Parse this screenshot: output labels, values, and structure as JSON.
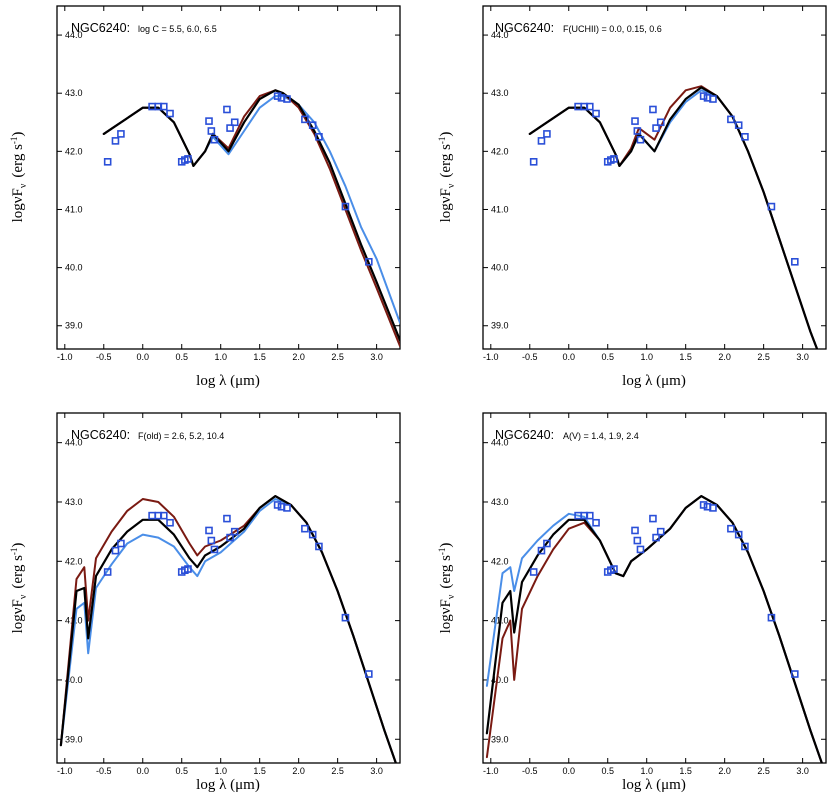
{
  "colors": {
    "black": "#000000",
    "red": "#7a1a12",
    "light_blue": "#4a8ee8",
    "observed": "#2a4fd8"
  },
  "chart_data": [
    {
      "type": "line",
      "object": "NGC6240:",
      "params": "log C = 5.5, 6.0, 6.5",
      "xlabel": "log λ  (μm)",
      "ylabel": "logνF",
      "ylabel_sub": "ν",
      "ylabel_units": "(erg s",
      "ylabel_units_sup": "-1",
      "ylabel_units_close": ")",
      "xlim": [
        -1.1,
        3.3
      ],
      "ylim": [
        38.6,
        44.5
      ],
      "xticks": [
        "-1.0",
        "-0.5",
        "0.0",
        "0.5",
        "1.0",
        "1.5",
        "2.0",
        "2.5",
        "3.0"
      ],
      "yticks": [
        "39.0",
        "40.0",
        "41.0",
        "42.0",
        "43.0",
        "44.0"
      ],
      "series": [
        {
          "name": "log C = 5.5",
          "color": "light_blue",
          "x": [
            -0.5,
            0.0,
            0.2,
            0.4,
            0.6,
            0.65,
            0.8,
            0.9,
            1.1,
            1.3,
            1.5,
            1.7,
            1.8,
            2.0,
            2.2,
            2.4,
            2.6,
            2.8,
            3.0,
            3.3
          ],
          "y": [
            42.3,
            42.75,
            42.75,
            42.5,
            41.95,
            41.75,
            42.0,
            42.25,
            41.95,
            42.35,
            42.75,
            42.95,
            42.95,
            42.8,
            42.5,
            42.0,
            41.4,
            40.7,
            40.15,
            39.05
          ]
        },
        {
          "name": "log C = 6.0",
          "color": "black",
          "x": [
            -0.5,
            0.0,
            0.2,
            0.4,
            0.6,
            0.65,
            0.8,
            0.9,
            1.1,
            1.3,
            1.5,
            1.7,
            1.8,
            2.0,
            2.2,
            2.4,
            2.6,
            2.8,
            3.0,
            3.3
          ],
          "y": [
            42.3,
            42.75,
            42.75,
            42.5,
            41.95,
            41.75,
            42.0,
            42.3,
            42.0,
            42.5,
            42.9,
            43.05,
            43.0,
            42.8,
            42.35,
            41.8,
            41.1,
            40.4,
            39.75,
            38.75
          ]
        },
        {
          "name": "log C = 6.5",
          "color": "red",
          "x": [
            -0.5,
            0.0,
            0.2,
            0.4,
            0.6,
            0.65,
            0.8,
            0.9,
            1.1,
            1.3,
            1.5,
            1.7,
            1.8,
            2.0,
            2.2,
            2.4,
            2.6,
            2.8,
            3.0,
            3.3
          ],
          "y": [
            42.3,
            42.75,
            42.75,
            42.5,
            41.95,
            41.75,
            42.0,
            42.3,
            42.05,
            42.6,
            42.95,
            43.05,
            43.0,
            42.75,
            42.3,
            41.7,
            41.0,
            40.3,
            39.65,
            38.65
          ]
        }
      ],
      "observed": {
        "x": [
          -0.45,
          -0.35,
          -0.28,
          0.12,
          0.2,
          0.27,
          0.35,
          0.5,
          0.54,
          0.58,
          0.85,
          0.88,
          0.92,
          1.08,
          1.12,
          1.18,
          1.73,
          1.78,
          1.85,
          2.08,
          2.18,
          2.26,
          2.6,
          2.9
        ],
        "y": [
          41.82,
          42.18,
          42.3,
          42.77,
          42.77,
          42.77,
          42.65,
          41.82,
          41.85,
          41.87,
          42.52,
          42.35,
          42.2,
          42.72,
          42.4,
          42.5,
          42.95,
          42.92,
          42.9,
          42.55,
          42.45,
          42.25,
          41.05,
          40.1
        ]
      }
    },
    {
      "type": "line",
      "object": "NGC6240:",
      "params": "F(UCHII) = 0.0, 0.15, 0.6",
      "xlabel": "log λ  (μm)",
      "ylabel": "logνF",
      "ylabel_sub": "ν",
      "ylabel_units": "(erg s",
      "ylabel_units_sup": "-1",
      "ylabel_units_close": ")",
      "xlim": [
        -1.1,
        3.3
      ],
      "ylim": [
        38.6,
        44.5
      ],
      "xticks": [
        "-1.0",
        "-0.5",
        "0.0",
        "0.5",
        "1.0",
        "1.5",
        "2.0",
        "2.5",
        "3.0"
      ],
      "yticks": [
        "39.0",
        "40.0",
        "41.0",
        "42.0",
        "43.0",
        "44.0"
      ],
      "series": [
        {
          "name": "F(UCHII) = 0.0",
          "color": "light_blue",
          "x": [
            -0.5,
            0.0,
            0.2,
            0.4,
            0.6,
            0.65,
            0.8,
            0.9,
            1.1,
            1.3,
            1.5,
            1.7,
            1.9,
            2.1,
            2.3,
            2.5,
            2.7,
            2.9,
            3.1,
            3.3
          ],
          "y": [
            42.3,
            42.75,
            42.75,
            42.5,
            41.95,
            41.75,
            42.0,
            42.3,
            42.0,
            42.5,
            42.85,
            43.05,
            42.95,
            42.6,
            42.0,
            41.3,
            40.5,
            39.7,
            38.9,
            38.2
          ]
        },
        {
          "name": "F(UCHII) = 0.15",
          "color": "black",
          "x": [
            -0.5,
            0.0,
            0.2,
            0.4,
            0.6,
            0.65,
            0.8,
            0.9,
            1.1,
            1.3,
            1.5,
            1.7,
            1.9,
            2.1,
            2.3,
            2.5,
            2.7,
            2.9,
            3.1,
            3.3
          ],
          "y": [
            42.3,
            42.75,
            42.75,
            42.5,
            41.95,
            41.75,
            42.0,
            42.3,
            42.0,
            42.55,
            42.9,
            43.1,
            42.95,
            42.6,
            42.0,
            41.3,
            40.5,
            39.7,
            38.9,
            38.2
          ]
        },
        {
          "name": "F(UCHII) = 0.6",
          "color": "red",
          "x": [
            -0.5,
            0.0,
            0.2,
            0.4,
            0.6,
            0.65,
            0.8,
            0.9,
            1.1,
            1.3,
            1.5,
            1.7,
            1.9,
            2.1,
            2.3,
            2.5,
            2.7,
            2.9,
            3.1,
            3.3
          ],
          "y": [
            42.3,
            42.75,
            42.75,
            42.5,
            41.95,
            41.75,
            42.05,
            42.4,
            42.2,
            42.75,
            43.05,
            43.12,
            42.95,
            42.6,
            42.0,
            41.3,
            40.5,
            39.7,
            38.9,
            38.2
          ]
        }
      ],
      "observed": {
        "x": [
          -0.45,
          -0.35,
          -0.28,
          0.12,
          0.2,
          0.27,
          0.35,
          0.5,
          0.54,
          0.58,
          0.85,
          0.88,
          0.92,
          1.08,
          1.12,
          1.18,
          1.73,
          1.78,
          1.85,
          2.08,
          2.18,
          2.26,
          2.6,
          2.9
        ],
        "y": [
          41.82,
          42.18,
          42.3,
          42.77,
          42.77,
          42.77,
          42.65,
          41.82,
          41.85,
          41.87,
          42.52,
          42.35,
          42.2,
          42.72,
          42.4,
          42.5,
          42.95,
          42.92,
          42.9,
          42.55,
          42.45,
          42.25,
          41.05,
          40.1
        ]
      }
    },
    {
      "type": "line",
      "object": "NGC6240:",
      "params": "F(old) = 2.6, 5.2, 10.4",
      "xlabel": "log λ  (μm)",
      "ylabel": "logνF",
      "ylabel_sub": "ν",
      "ylabel_units": "(erg s",
      "ylabel_units_sup": "-1",
      "ylabel_units_close": ")",
      "xlim": [
        -1.1,
        3.3
      ],
      "ylim": [
        38.6,
        44.5
      ],
      "xticks": [
        "-1.0",
        "-0.5",
        "0.0",
        "0.5",
        "1.0",
        "1.5",
        "2.0",
        "2.5",
        "3.0"
      ],
      "yticks": [
        "39.0",
        "40.0",
        "41.0",
        "42.0",
        "43.0",
        "44.0"
      ],
      "series": [
        {
          "name": "F(old) = 2.6",
          "color": "light_blue",
          "x": [
            -1.05,
            -0.85,
            -0.75,
            -0.7,
            -0.6,
            -0.4,
            -0.2,
            0.0,
            0.2,
            0.4,
            0.6,
            0.7,
            0.8,
            1.0,
            1.3,
            1.5,
            1.7,
            1.9,
            2.1,
            2.3,
            2.5,
            2.7,
            2.9,
            3.1,
            3.3
          ],
          "y": [
            38.9,
            41.2,
            41.3,
            40.45,
            41.55,
            41.95,
            42.3,
            42.45,
            42.4,
            42.25,
            41.9,
            41.75,
            42.0,
            42.15,
            42.5,
            42.85,
            43.05,
            42.95,
            42.65,
            42.15,
            41.5,
            40.75,
            39.95,
            39.15,
            38.4
          ]
        },
        {
          "name": "F(old) = 5.2",
          "color": "black",
          "x": [
            -1.05,
            -0.85,
            -0.75,
            -0.7,
            -0.6,
            -0.4,
            -0.2,
            0.0,
            0.2,
            0.4,
            0.6,
            0.7,
            0.8,
            1.0,
            1.3,
            1.5,
            1.7,
            1.9,
            2.1,
            2.3,
            2.5,
            2.7,
            2.9,
            3.1,
            3.3
          ],
          "y": [
            38.9,
            41.5,
            41.55,
            40.7,
            41.75,
            42.2,
            42.5,
            42.7,
            42.7,
            42.45,
            42.05,
            41.9,
            42.1,
            42.25,
            42.55,
            42.9,
            43.1,
            42.95,
            42.65,
            42.15,
            41.5,
            40.75,
            39.95,
            39.15,
            38.4
          ]
        },
        {
          "name": "F(old) = 10.4",
          "color": "red",
          "x": [
            -1.05,
            -0.85,
            -0.75,
            -0.7,
            -0.6,
            -0.4,
            -0.2,
            0.0,
            0.2,
            0.4,
            0.6,
            0.7,
            0.8,
            1.0,
            1.3,
            1.5,
            1.7,
            1.9,
            2.1,
            2.3,
            2.5,
            2.7,
            2.9,
            3.1,
            3.3
          ],
          "y": [
            38.9,
            41.7,
            41.9,
            41.0,
            42.05,
            42.5,
            42.85,
            43.05,
            43.0,
            42.75,
            42.3,
            42.1,
            42.25,
            42.35,
            42.6,
            42.9,
            43.1,
            42.95,
            42.65,
            42.15,
            41.5,
            40.75,
            39.95,
            39.15,
            38.4
          ]
        }
      ],
      "observed": {
        "x": [
          -0.45,
          -0.35,
          -0.28,
          0.12,
          0.2,
          0.27,
          0.35,
          0.5,
          0.54,
          0.58,
          0.85,
          0.88,
          0.92,
          1.08,
          1.12,
          1.18,
          1.73,
          1.78,
          1.85,
          2.08,
          2.18,
          2.26,
          2.6,
          2.9
        ],
        "y": [
          41.82,
          42.18,
          42.3,
          42.77,
          42.77,
          42.77,
          42.65,
          41.82,
          41.85,
          41.87,
          42.52,
          42.35,
          42.2,
          42.72,
          42.4,
          42.5,
          42.95,
          42.92,
          42.9,
          42.55,
          42.45,
          42.25,
          41.05,
          40.1
        ]
      }
    },
    {
      "type": "line",
      "object": "NGC6240:",
      "params": "A(V) = 1.4, 1.9, 2.4",
      "xlabel": "log λ  (μm)",
      "ylabel": "logνF",
      "ylabel_sub": "ν",
      "ylabel_units": "(erg s",
      "ylabel_units_sup": "-1",
      "ylabel_units_close": ")",
      "xlim": [
        -1.1,
        3.3
      ],
      "ylim": [
        38.6,
        44.5
      ],
      "xticks": [
        "-1.0",
        "-0.5",
        "0.0",
        "0.5",
        "1.0",
        "1.5",
        "2.0",
        "2.5",
        "3.0"
      ],
      "yticks": [
        "39.0",
        "40.0",
        "41.0",
        "42.0",
        "43.0",
        "44.0"
      ],
      "series": [
        {
          "name": "A(V) = 1.4",
          "color": "light_blue",
          "x": [
            -1.05,
            -0.85,
            -0.75,
            -0.7,
            -0.6,
            -0.4,
            -0.2,
            0.0,
            0.2,
            0.4,
            0.6,
            0.7,
            0.8,
            1.0,
            1.3,
            1.5,
            1.7,
            1.9,
            2.1,
            2.3,
            2.5,
            2.7,
            2.9,
            3.1,
            3.3
          ],
          "y": [
            39.9,
            41.8,
            41.9,
            41.5,
            42.05,
            42.35,
            42.6,
            42.8,
            42.75,
            42.35,
            41.8,
            41.75,
            42.0,
            42.2,
            42.55,
            42.9,
            43.1,
            42.95,
            42.65,
            42.15,
            41.5,
            40.75,
            39.95,
            39.15,
            38.4
          ]
        },
        {
          "name": "A(V) = 1.9",
          "color": "black",
          "x": [
            -1.05,
            -0.85,
            -0.75,
            -0.7,
            -0.6,
            -0.4,
            -0.2,
            0.0,
            0.2,
            0.4,
            0.6,
            0.7,
            0.8,
            1.0,
            1.3,
            1.5,
            1.7,
            1.9,
            2.1,
            2.3,
            2.5,
            2.7,
            2.9,
            3.1,
            3.3
          ],
          "y": [
            39.1,
            41.3,
            41.5,
            40.8,
            41.65,
            42.1,
            42.45,
            42.7,
            42.7,
            42.35,
            41.8,
            41.75,
            42.0,
            42.2,
            42.55,
            42.9,
            43.1,
            42.95,
            42.65,
            42.15,
            41.5,
            40.75,
            39.95,
            39.15,
            38.4
          ]
        },
        {
          "name": "A(V) = 2.4",
          "color": "red",
          "x": [
            -1.05,
            -0.85,
            -0.75,
            -0.7,
            -0.6,
            -0.4,
            -0.2,
            0.0,
            0.2,
            0.4,
            0.6,
            0.7,
            0.8,
            1.0,
            1.3,
            1.5,
            1.7,
            1.9,
            2.1,
            2.3,
            2.5,
            2.7,
            2.9,
            3.1,
            3.3
          ],
          "y": [
            38.7,
            40.7,
            41.0,
            40.0,
            41.2,
            41.75,
            42.2,
            42.55,
            42.65,
            42.35,
            41.8,
            41.75,
            42.0,
            42.2,
            42.55,
            42.9,
            43.1,
            42.95,
            42.65,
            42.15,
            41.5,
            40.75,
            39.95,
            39.15,
            38.4
          ]
        }
      ],
      "observed": {
        "x": [
          -0.45,
          -0.35,
          -0.28,
          0.12,
          0.2,
          0.27,
          0.35,
          0.5,
          0.54,
          0.58,
          0.85,
          0.88,
          0.92,
          1.08,
          1.12,
          1.18,
          1.73,
          1.78,
          1.85,
          2.08,
          2.18,
          2.26,
          2.6,
          2.9
        ],
        "y": [
          41.82,
          42.18,
          42.3,
          42.77,
          42.77,
          42.77,
          42.65,
          41.82,
          41.85,
          41.87,
          42.52,
          42.35,
          42.2,
          42.72,
          42.4,
          42.5,
          42.95,
          42.92,
          42.9,
          42.55,
          42.45,
          42.25,
          41.05,
          40.1
        ]
      }
    }
  ]
}
